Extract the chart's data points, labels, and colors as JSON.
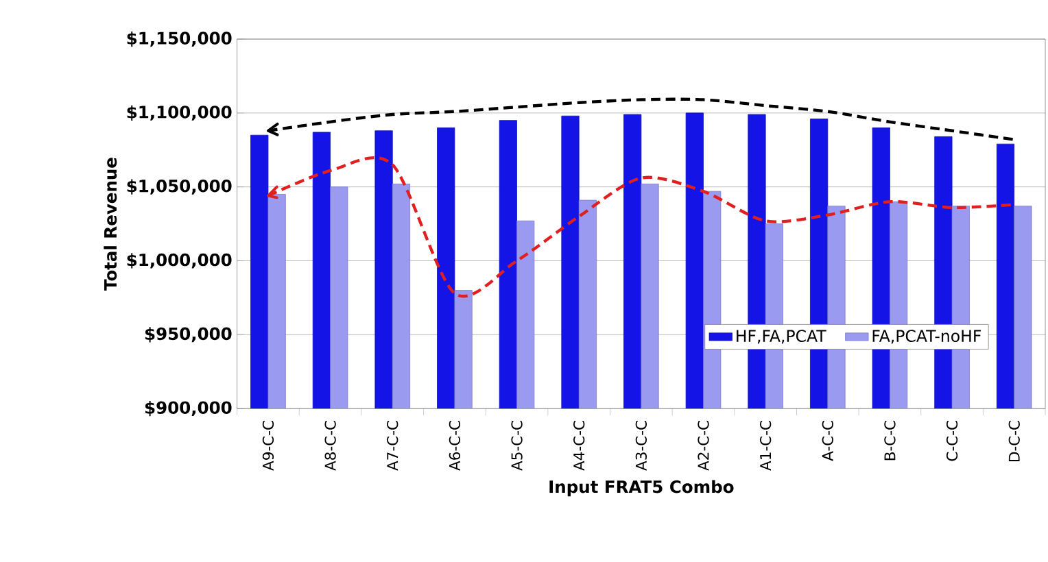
{
  "chart_data": {
    "type": "bar",
    "xlabel": "Input FRAT5 Combo",
    "ylabel": "Total Revenue",
    "categories": [
      "A9-C-C",
      "A8-C-C",
      "A7-C-C",
      "A6-C-C",
      "A5-C-C",
      "A4-C-C",
      "A3-C-C",
      "A2-C-C",
      "A1-C-C",
      "A-C-C",
      "B-C-C",
      "C-C-C",
      "D-C-C"
    ],
    "series": [
      {
        "name": "HF,FA,PCAT",
        "color": "#1414e6",
        "values": [
          1085000,
          1087000,
          1088000,
          1090000,
          1095000,
          1098000,
          1099000,
          1100000,
          1099000,
          1096000,
          1090000,
          1084000,
          1079000
        ]
      },
      {
        "name": "FA,PCAT-noHF",
        "color": "#9a9af0",
        "values": [
          1045000,
          1050000,
          1052000,
          980000,
          1027000,
          1041000,
          1052000,
          1047000,
          1025000,
          1037000,
          1040000,
          1037000,
          1037000
        ]
      },
      {
        "type": "line",
        "color": "#000000",
        "line_style": "dashed",
        "values": [
          1088000,
          1094000,
          1099000,
          1101000,
          1104000,
          1107000,
          1109000,
          1109000,
          1105000,
          1101000,
          1094000,
          1088000,
          1082000
        ]
      },
      {
        "type": "line",
        "color": "#e02020",
        "line_style": "dashed",
        "values": [
          1044000,
          1061000,
          1065000,
          978000,
          1000000,
          1030000,
          1056000,
          1047000,
          1027000,
          1031000,
          1040000,
          1036000,
          1038000
        ]
      }
    ],
    "ylim": [
      900000,
      1150000
    ],
    "yticks": [
      {
        "value": 900000,
        "label": "$900,000"
      },
      {
        "value": 950000,
        "label": "$950,000"
      },
      {
        "value": 1000000,
        "label": "$1,000,000"
      },
      {
        "value": 1050000,
        "label": "$1,050,000"
      },
      {
        "value": 1100000,
        "label": "$1,100,000"
      },
      {
        "value": 1150000,
        "label": "$1,150,000"
      }
    ],
    "grid": "y",
    "legend": "bottom right",
    "marker": "none"
  }
}
